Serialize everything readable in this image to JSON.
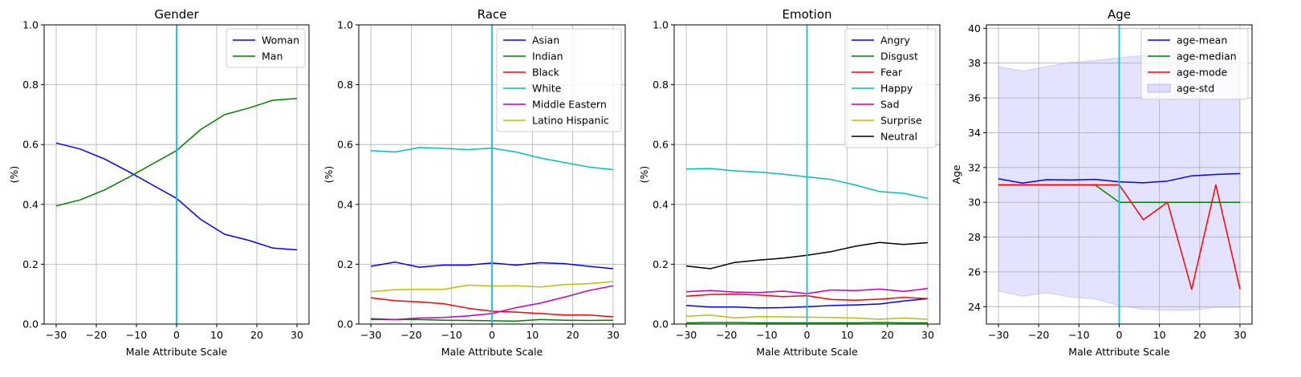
{
  "figure": {
    "background": "#ffffff",
    "marker_color": "#17becf"
  },
  "chart_data": [
    {
      "type": "line",
      "title": "Gender",
      "xlabel": "Male Attribute Scale",
      "ylabel": "(%)",
      "xlim": [
        -33,
        33
      ],
      "ylim": [
        0,
        1
      ],
      "xticks": [
        -30,
        -20,
        -10,
        0,
        10,
        20,
        30
      ],
      "yticks": [
        0.0,
        0.2,
        0.4,
        0.6,
        0.8,
        1.0
      ],
      "ytick_labels": [
        "0.0",
        "0.2",
        "0.4",
        "0.6",
        "0.8",
        "1.0"
      ],
      "xtick_labels": [
        "−30",
        "−20",
        "−10",
        "0",
        "10",
        "20",
        "30"
      ],
      "grid": true,
      "vline": 0,
      "legend": "top-right",
      "x": [
        -30,
        -24,
        -18,
        -12,
        -6,
        0,
        6,
        12,
        18,
        24,
        30
      ],
      "series": [
        {
          "name": "Woman",
          "color": "#0000ff",
          "values": [
            0.605,
            0.585,
            0.552,
            0.51,
            0.465,
            0.42,
            0.35,
            0.3,
            0.28,
            0.254,
            0.248
          ]
        },
        {
          "name": "Man",
          "color": "#008000",
          "values": [
            0.395,
            0.415,
            0.448,
            0.49,
            0.535,
            0.58,
            0.65,
            0.7,
            0.722,
            0.748,
            0.754
          ]
        }
      ]
    },
    {
      "type": "line",
      "title": "Race",
      "xlabel": "Male Attribute Scale",
      "ylabel": "(%)",
      "xlim": [
        -33,
        33
      ],
      "ylim": [
        0,
        1
      ],
      "xticks": [
        -30,
        -20,
        -10,
        0,
        10,
        20,
        30
      ],
      "yticks": [
        0.0,
        0.2,
        0.4,
        0.6,
        0.8,
        1.0
      ],
      "ytick_labels": [
        "0.0",
        "0.2",
        "0.4",
        "0.6",
        "0.8",
        "1.0"
      ],
      "xtick_labels": [
        "−30",
        "−20",
        "−10",
        "0",
        "10",
        "20",
        "30"
      ],
      "grid": true,
      "vline": 0,
      "legend": "top-right",
      "x": [
        -30,
        -24,
        -18,
        -12,
        -6,
        0,
        6,
        12,
        18,
        24,
        30
      ],
      "series": [
        {
          "name": "Asian",
          "color": "#0000ff",
          "values": [
            0.193,
            0.207,
            0.19,
            0.197,
            0.197,
            0.204,
            0.197,
            0.205,
            0.202,
            0.193,
            0.185
          ]
        },
        {
          "name": "Indian",
          "color": "#008000",
          "values": [
            0.015,
            0.015,
            0.015,
            0.013,
            0.012,
            0.011,
            0.01,
            0.015,
            0.013,
            0.012,
            0.013
          ]
        },
        {
          "name": "Black",
          "color": "#ff0000",
          "values": [
            0.088,
            0.078,
            0.074,
            0.068,
            0.053,
            0.043,
            0.04,
            0.035,
            0.03,
            0.03,
            0.024
          ]
        },
        {
          "name": "White",
          "color": "#00bfbf",
          "values": [
            0.58,
            0.575,
            0.59,
            0.587,
            0.583,
            0.588,
            0.575,
            0.555,
            0.54,
            0.525,
            0.516
          ]
        },
        {
          "name": "Middle Eastern",
          "color": "#bf00bf",
          "values": [
            0.018,
            0.015,
            0.02,
            0.022,
            0.027,
            0.035,
            0.055,
            0.07,
            0.09,
            0.112,
            0.128
          ]
        },
        {
          "name": "Latino Hispanic",
          "color": "#bfbf00",
          "values": [
            0.108,
            0.115,
            0.116,
            0.116,
            0.13,
            0.127,
            0.128,
            0.124,
            0.132,
            0.135,
            0.142
          ]
        }
      ]
    },
    {
      "type": "line",
      "title": "Emotion",
      "xlabel": "Male Attribute Scale",
      "ylabel": "(%)",
      "xlim": [
        -33,
        33
      ],
      "ylim": [
        0,
        1
      ],
      "xticks": [
        -30,
        -20,
        -10,
        0,
        10,
        20,
        30
      ],
      "yticks": [
        0.0,
        0.2,
        0.4,
        0.6,
        0.8,
        1.0
      ],
      "ytick_labels": [
        "0.0",
        "0.2",
        "0.4",
        "0.6",
        "0.8",
        "1.0"
      ],
      "xtick_labels": [
        "−30",
        "−20",
        "−10",
        "0",
        "10",
        "20",
        "30"
      ],
      "grid": true,
      "vline": 0,
      "legend": "top-right",
      "x": [
        -30,
        -24,
        -18,
        -12,
        -6,
        0,
        6,
        12,
        18,
        24,
        30
      ],
      "series": [
        {
          "name": "Angry",
          "color": "#0000ff",
          "values": [
            0.062,
            0.057,
            0.057,
            0.054,
            0.055,
            0.058,
            0.062,
            0.064,
            0.067,
            0.077,
            0.085
          ]
        },
        {
          "name": "Disgust",
          "color": "#008000",
          "values": [
            0.004,
            0.005,
            0.005,
            0.004,
            0.004,
            0.004,
            0.004,
            0.004,
            0.005,
            0.004,
            0.004
          ]
        },
        {
          "name": "Fear",
          "color": "#ff0000",
          "values": [
            0.093,
            0.099,
            0.1,
            0.097,
            0.092,
            0.095,
            0.082,
            0.08,
            0.083,
            0.089,
            0.085
          ]
        },
        {
          "name": "Happy",
          "color": "#00bfbf",
          "values": [
            0.518,
            0.52,
            0.512,
            0.508,
            0.501,
            0.492,
            0.483,
            0.465,
            0.443,
            0.437,
            0.42
          ]
        },
        {
          "name": "Sad",
          "color": "#bf00bf",
          "values": [
            0.108,
            0.112,
            0.107,
            0.105,
            0.11,
            0.102,
            0.114,
            0.112,
            0.117,
            0.109,
            0.119
          ]
        },
        {
          "name": "Surprise",
          "color": "#bfbf00",
          "values": [
            0.026,
            0.03,
            0.021,
            0.025,
            0.024,
            0.023,
            0.022,
            0.02,
            0.016,
            0.02,
            0.016
          ]
        },
        {
          "name": "Neutral",
          "color": "#000000",
          "values": [
            0.194,
            0.185,
            0.206,
            0.214,
            0.22,
            0.23,
            0.242,
            0.26,
            0.273,
            0.266,
            0.272
          ]
        }
      ]
    },
    {
      "type": "line",
      "title": "Age",
      "xlabel": "Male Attribute Scale",
      "ylabel": "Age",
      "xlim": [
        -33,
        33
      ],
      "ylim": [
        23,
        40.2
      ],
      "xticks": [
        -30,
        -20,
        -10,
        0,
        10,
        20,
        30
      ],
      "yticks": [
        24,
        26,
        28,
        30,
        32,
        34,
        36,
        38,
        40
      ],
      "ytick_labels": [
        "24",
        "26",
        "28",
        "30",
        "32",
        "34",
        "36",
        "38",
        "40"
      ],
      "xtick_labels": [
        "−30",
        "−20",
        "−10",
        "0",
        "10",
        "20",
        "30"
      ],
      "grid": true,
      "vline": 0,
      "legend": "top-right",
      "x": [
        -30,
        -24,
        -18,
        -12,
        -6,
        0,
        6,
        12,
        18,
        24,
        30
      ],
      "series": [
        {
          "name": "age-mean",
          "color": "#0000ff",
          "values": [
            31.35,
            31.1,
            31.3,
            31.28,
            31.32,
            31.18,
            31.12,
            31.22,
            31.52,
            31.6,
            31.65
          ]
        },
        {
          "name": "age-median",
          "color": "#008000",
          "values": [
            31,
            31,
            31,
            31,
            31,
            30,
            30,
            30,
            30,
            30,
            30
          ]
        },
        {
          "name": "age-mode",
          "color": "#ff0000",
          "values": [
            31,
            31,
            31,
            31,
            31,
            31,
            29,
            30,
            25,
            31,
            25
          ]
        }
      ],
      "band": {
        "name": "age-std",
        "color": "#0000ff",
        "opacity": 0.11,
        "upper": [
          37.8,
          37.55,
          37.8,
          38.05,
          38.15,
          38.3,
          38.45,
          38.5,
          38.45,
          38.55,
          38.6
        ],
        "lower": [
          24.9,
          24.6,
          24.8,
          24.55,
          24.45,
          24.05,
          23.85,
          23.8,
          23.8,
          23.95,
          23.95
        ]
      }
    }
  ]
}
